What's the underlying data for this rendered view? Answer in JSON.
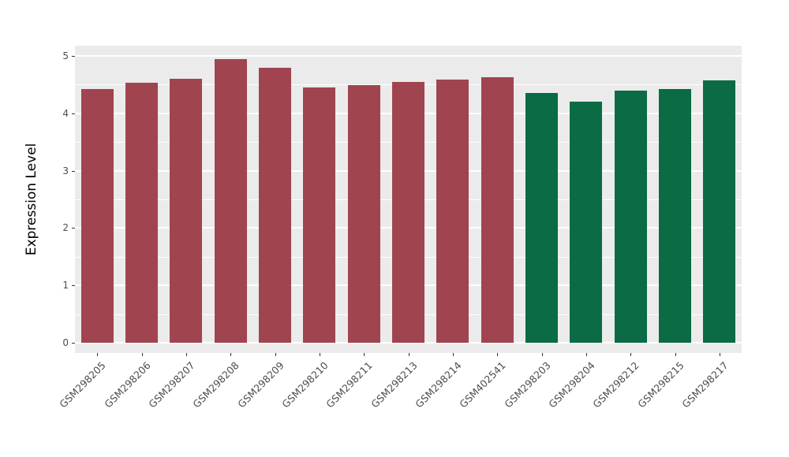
{
  "chart_data": {
    "type": "bar",
    "title": "",
    "xlabel": "",
    "ylabel": "Expression Level",
    "ylim": [
      0,
      5.1
    ],
    "yticks": [
      0,
      1,
      2,
      3,
      4,
      5
    ],
    "grid": true,
    "legend": "none",
    "panel_bg": "#EBEBEB",
    "grid_color": "#FFFFFF",
    "axis_text_color": "#4D4D4D",
    "bar_groups": [
      {
        "name": "group-red",
        "color": "#A04550"
      },
      {
        "name": "group-green",
        "color": "#0A6B45"
      }
    ],
    "bars": [
      {
        "label": "GSM298205",
        "value": 4.42,
        "group": 0
      },
      {
        "label": "GSM298206",
        "value": 4.53,
        "group": 0
      },
      {
        "label": "GSM298207",
        "value": 4.6,
        "group": 0
      },
      {
        "label": "GSM298208",
        "value": 4.95,
        "group": 0
      },
      {
        "label": "GSM298209",
        "value": 4.79,
        "group": 0
      },
      {
        "label": "GSM298210",
        "value": 4.45,
        "group": 0
      },
      {
        "label": "GSM298211",
        "value": 4.49,
        "group": 0
      },
      {
        "label": "GSM298213",
        "value": 4.54,
        "group": 0
      },
      {
        "label": "GSM298214",
        "value": 4.59,
        "group": 0
      },
      {
        "label": "GSM402541",
        "value": 4.63,
        "group": 0
      },
      {
        "label": "GSM298203",
        "value": 4.35,
        "group": 1
      },
      {
        "label": "GSM298204",
        "value": 4.21,
        "group": 1
      },
      {
        "label": "GSM298212",
        "value": 4.39,
        "group": 1
      },
      {
        "label": "GSM298215",
        "value": 4.42,
        "group": 1
      },
      {
        "label": "GSM298217",
        "value": 4.57,
        "group": 1
      }
    ]
  }
}
